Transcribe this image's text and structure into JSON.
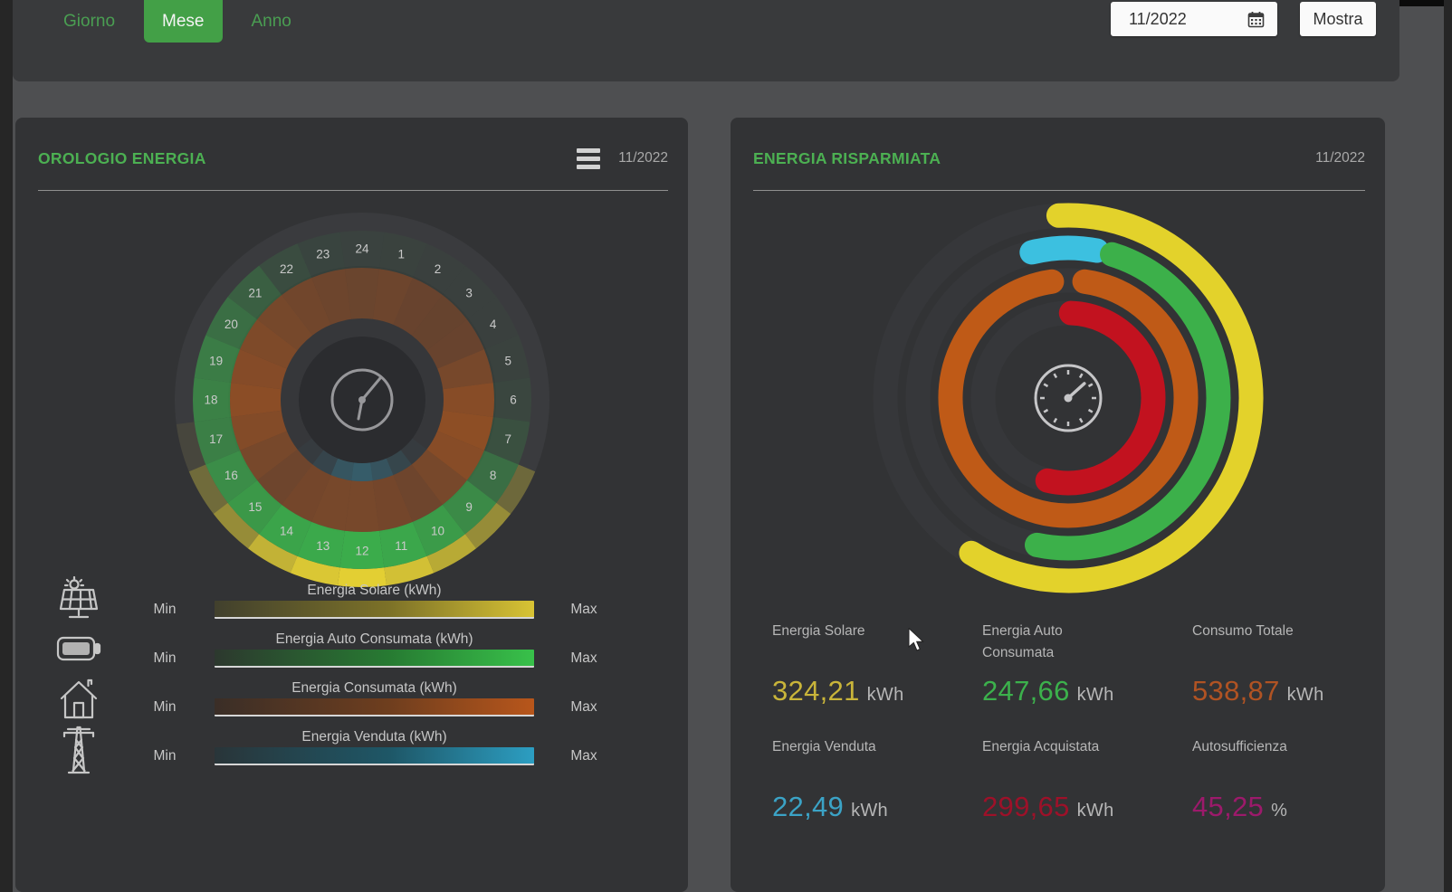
{
  "toolbar": {
    "tabs": [
      {
        "label": "Giorno",
        "active": false
      },
      {
        "label": "Mese",
        "active": true
      },
      {
        "label": "Anno",
        "active": false
      }
    ],
    "date_value": "11/2022",
    "show_button": "Mostra"
  },
  "left_panel": {
    "title": "OROLOGIO ENERGIA",
    "date": "11/2022",
    "menu_icon": "hamburger-menu-icon",
    "legend": [
      {
        "icon": "solar-panel-icon",
        "label": "Energia Solare (kWh)",
        "min": "Min",
        "max": "Max",
        "stops": [
          "#41402d",
          "#7d7228",
          "#d8c334"
        ]
      },
      {
        "icon": "battery-icon",
        "label": "Energia Auto Consumata (kWh)",
        "min": "Min",
        "max": "Max",
        "stops": [
          "#2c382e",
          "#277b32",
          "#38c14a"
        ]
      },
      {
        "icon": "house-icon",
        "label": "Energia Consumata (kWh)",
        "min": "Min",
        "max": "Max",
        "stops": [
          "#3a2e27",
          "#6f3e1e",
          "#b8561b"
        ]
      },
      {
        "icon": "pylon-icon",
        "label": "Energia Venduta (kWh)",
        "min": "Min",
        "max": "Max",
        "stops": [
          "#293539",
          "#1e5767",
          "#2c9ec2"
        ]
      }
    ]
  },
  "right_panel": {
    "title": "ENERGIA RISPARMIATA",
    "date": "11/2022",
    "stats": [
      {
        "label": "Energia Solare",
        "value": "324,21",
        "unit": "kWh",
        "color": "#c9b53a"
      },
      {
        "label": "Energia Auto Consumata",
        "value": "247,66",
        "unit": "kWh",
        "color": "#3cb14c"
      },
      {
        "label": "Consumo Totale",
        "value": "538,87",
        "unit": "kWh",
        "color": "#b05323"
      },
      {
        "label": "Energia Venduta",
        "value": "22,49",
        "unit": "kWh",
        "color": "#3ba3c6"
      },
      {
        "label": "Energia Acquistata",
        "value": "299,65",
        "unit": "kWh",
        "color": "#9d1129"
      },
      {
        "label": "Autosufficienza",
        "value": "45,25",
        "unit": "%",
        "color": "#9c1a6b"
      }
    ]
  },
  "chart_data": [
    {
      "type": "heatmap",
      "subtype": "radial-24h-clock",
      "title": "Orologio Energia 11/2022",
      "hours": [
        1,
        2,
        3,
        4,
        5,
        6,
        7,
        8,
        9,
        10,
        11,
        12,
        13,
        14,
        15,
        16,
        17,
        18,
        19,
        20,
        21,
        22,
        23,
        24
      ],
      "legend_position": "bottom",
      "series": [
        {
          "name": "Energia Solare (kWh)",
          "color": "#ecd733",
          "band": "outer",
          "values": [
            0,
            0,
            0,
            0,
            0,
            0,
            0,
            0.3,
            0.55,
            0.75,
            0.9,
            1.0,
            0.95,
            0.8,
            0.55,
            0.32,
            0.08,
            0,
            0,
            0,
            0,
            0,
            0,
            0
          ]
        },
        {
          "name": "Energia Auto Consumata (kWh)",
          "color": "#3cc14e",
          "band": "middle-outer",
          "values": [
            0.06,
            0.05,
            0.05,
            0.05,
            0.06,
            0.1,
            0.18,
            0.45,
            0.7,
            0.85,
            0.95,
            1.0,
            0.97,
            0.92,
            0.82,
            0.72,
            0.6,
            0.62,
            0.58,
            0.45,
            0.32,
            0.16,
            0.09,
            0.07
          ]
        },
        {
          "name": "Energia Consumata (kWh)",
          "color": "#cf5f17",
          "band": "middle-inner",
          "values": [
            0.5,
            0.46,
            0.44,
            0.46,
            0.6,
            0.74,
            0.8,
            0.74,
            0.6,
            0.52,
            0.56,
            0.6,
            0.6,
            0.56,
            0.52,
            0.6,
            0.7,
            0.78,
            0.72,
            0.66,
            0.58,
            0.54,
            0.5,
            0.48
          ]
        },
        {
          "name": "Energia Venduta (kWh)",
          "color": "#37b3d8",
          "band": "inner",
          "values": [
            0,
            0,
            0,
            0,
            0,
            0,
            0,
            0,
            0.06,
            0.22,
            0.42,
            0.55,
            0.45,
            0.2,
            0.06,
            0,
            0,
            0,
            0,
            0,
            0,
            0,
            0,
            0
          ]
        }
      ]
    },
    {
      "type": "pie",
      "subtype": "activity-rings",
      "title": "Energia Risparmiata 11/2022",
      "total_reference_kwh": 538.87,
      "stroke_width": 27,
      "rings": [
        {
          "name": "Energia Solare",
          "value": 324.21,
          "unit": "kWh",
          "color": "#e3d22b",
          "radius": 202,
          "start_deg": -3,
          "end_deg": 212
        },
        {
          "name": "Energia Venduta",
          "value": 22.49,
          "unit": "kWh",
          "color": "#3cc0e0",
          "radius": 166,
          "start_deg": -14,
          "end_deg": 11
        },
        {
          "name": "Energia Auto Consumata",
          "value": 247.66,
          "unit": "kWh",
          "color": "#3cb04a",
          "radius": 166,
          "start_deg": 17,
          "end_deg": 192
        },
        {
          "name": "Consumo Totale",
          "value": 538.87,
          "unit": "kWh",
          "color": "#bf5a17",
          "radius": 130,
          "start_deg": 8,
          "end_deg": 352
        },
        {
          "name": "Energia Acquistata",
          "value": 299.65,
          "unit": "kWh",
          "color": "#c2121f",
          "radius": 94,
          "start_deg": 2,
          "end_deg": 194
        }
      ],
      "autosufficienza_pct": 45.25
    }
  ]
}
